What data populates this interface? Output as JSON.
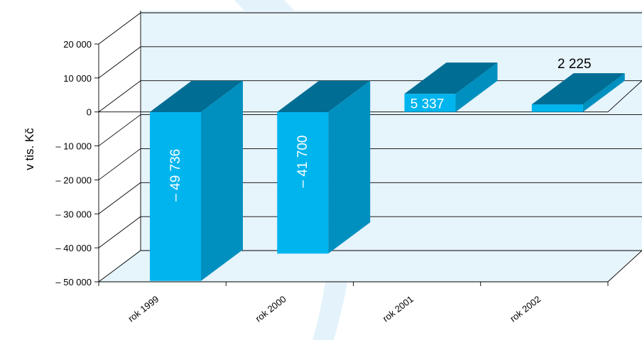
{
  "chart_data": {
    "type": "bar",
    "categories": [
      "rok 1999",
      "rok 2000",
      "rok 2001",
      "rok 2002"
    ],
    "values": [
      -49736,
      -41700,
      5337,
      2225
    ],
    "value_labels": [
      "– 49 736",
      "– 41 700",
      "5 337",
      "2 225"
    ],
    "ylabel": "v tis. Kč",
    "ylim": [
      -50000,
      20000
    ],
    "yticks": [
      20000,
      10000,
      0,
      -10000,
      -20000,
      -30000,
      -40000,
      -50000
    ],
    "ytick_labels": [
      "20 000",
      "10 000",
      "0",
      "– 10 000",
      "– 20 000",
      "– 30 000",
      "– 40 000",
      "– 50 000"
    ],
    "grid": true,
    "style": "3d",
    "colors": {
      "bar_front": "#00b5ee",
      "bar_top": "#006d94",
      "bar_side": "#0090c0",
      "wall": "#e6f4fb",
      "watermark": "#cfeaf8"
    }
  }
}
